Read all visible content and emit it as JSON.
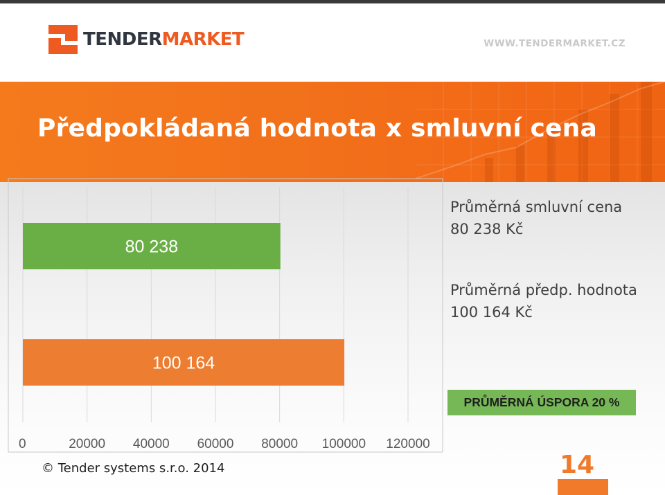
{
  "brand": {
    "name_part1": "TENDER",
    "name_part2": "MARKET",
    "url": "WWW.TENDERMARKET.CZ",
    "accent_color": "#ee5a1f",
    "dark_color": "#2f3640"
  },
  "slide": {
    "title": "Předpokládaná hodnota x smluvní cena",
    "page_number": "14",
    "footer": "© Tender systems s.r.o. 2014"
  },
  "info": {
    "contract": {
      "label": "Průměrná smluvní cena",
      "value": "80 238 Kč"
    },
    "estimated": {
      "label": "Průměrná předp. hodnota",
      "value": "100 164 Kč"
    },
    "savings": "PRŮMĚRNÁ ÚSPORA 20 %"
  },
  "chart_data": {
    "type": "bar",
    "orientation": "horizontal",
    "categories": [
      "Průměrná smluvní cena",
      "Průměrná předp. hodnota"
    ],
    "values": [
      80238,
      100164
    ],
    "data_labels": [
      "80 238",
      "100 164"
    ],
    "colors": [
      "#6aaf46",
      "#ed7d31"
    ],
    "xlim": [
      0,
      120000
    ],
    "xticks": [
      0,
      20000,
      40000,
      60000,
      80000,
      100000,
      120000
    ],
    "xtick_labels": [
      "0",
      "20000",
      "40000",
      "60000",
      "80000",
      "100000",
      "120000"
    ],
    "grid": "vertical"
  }
}
